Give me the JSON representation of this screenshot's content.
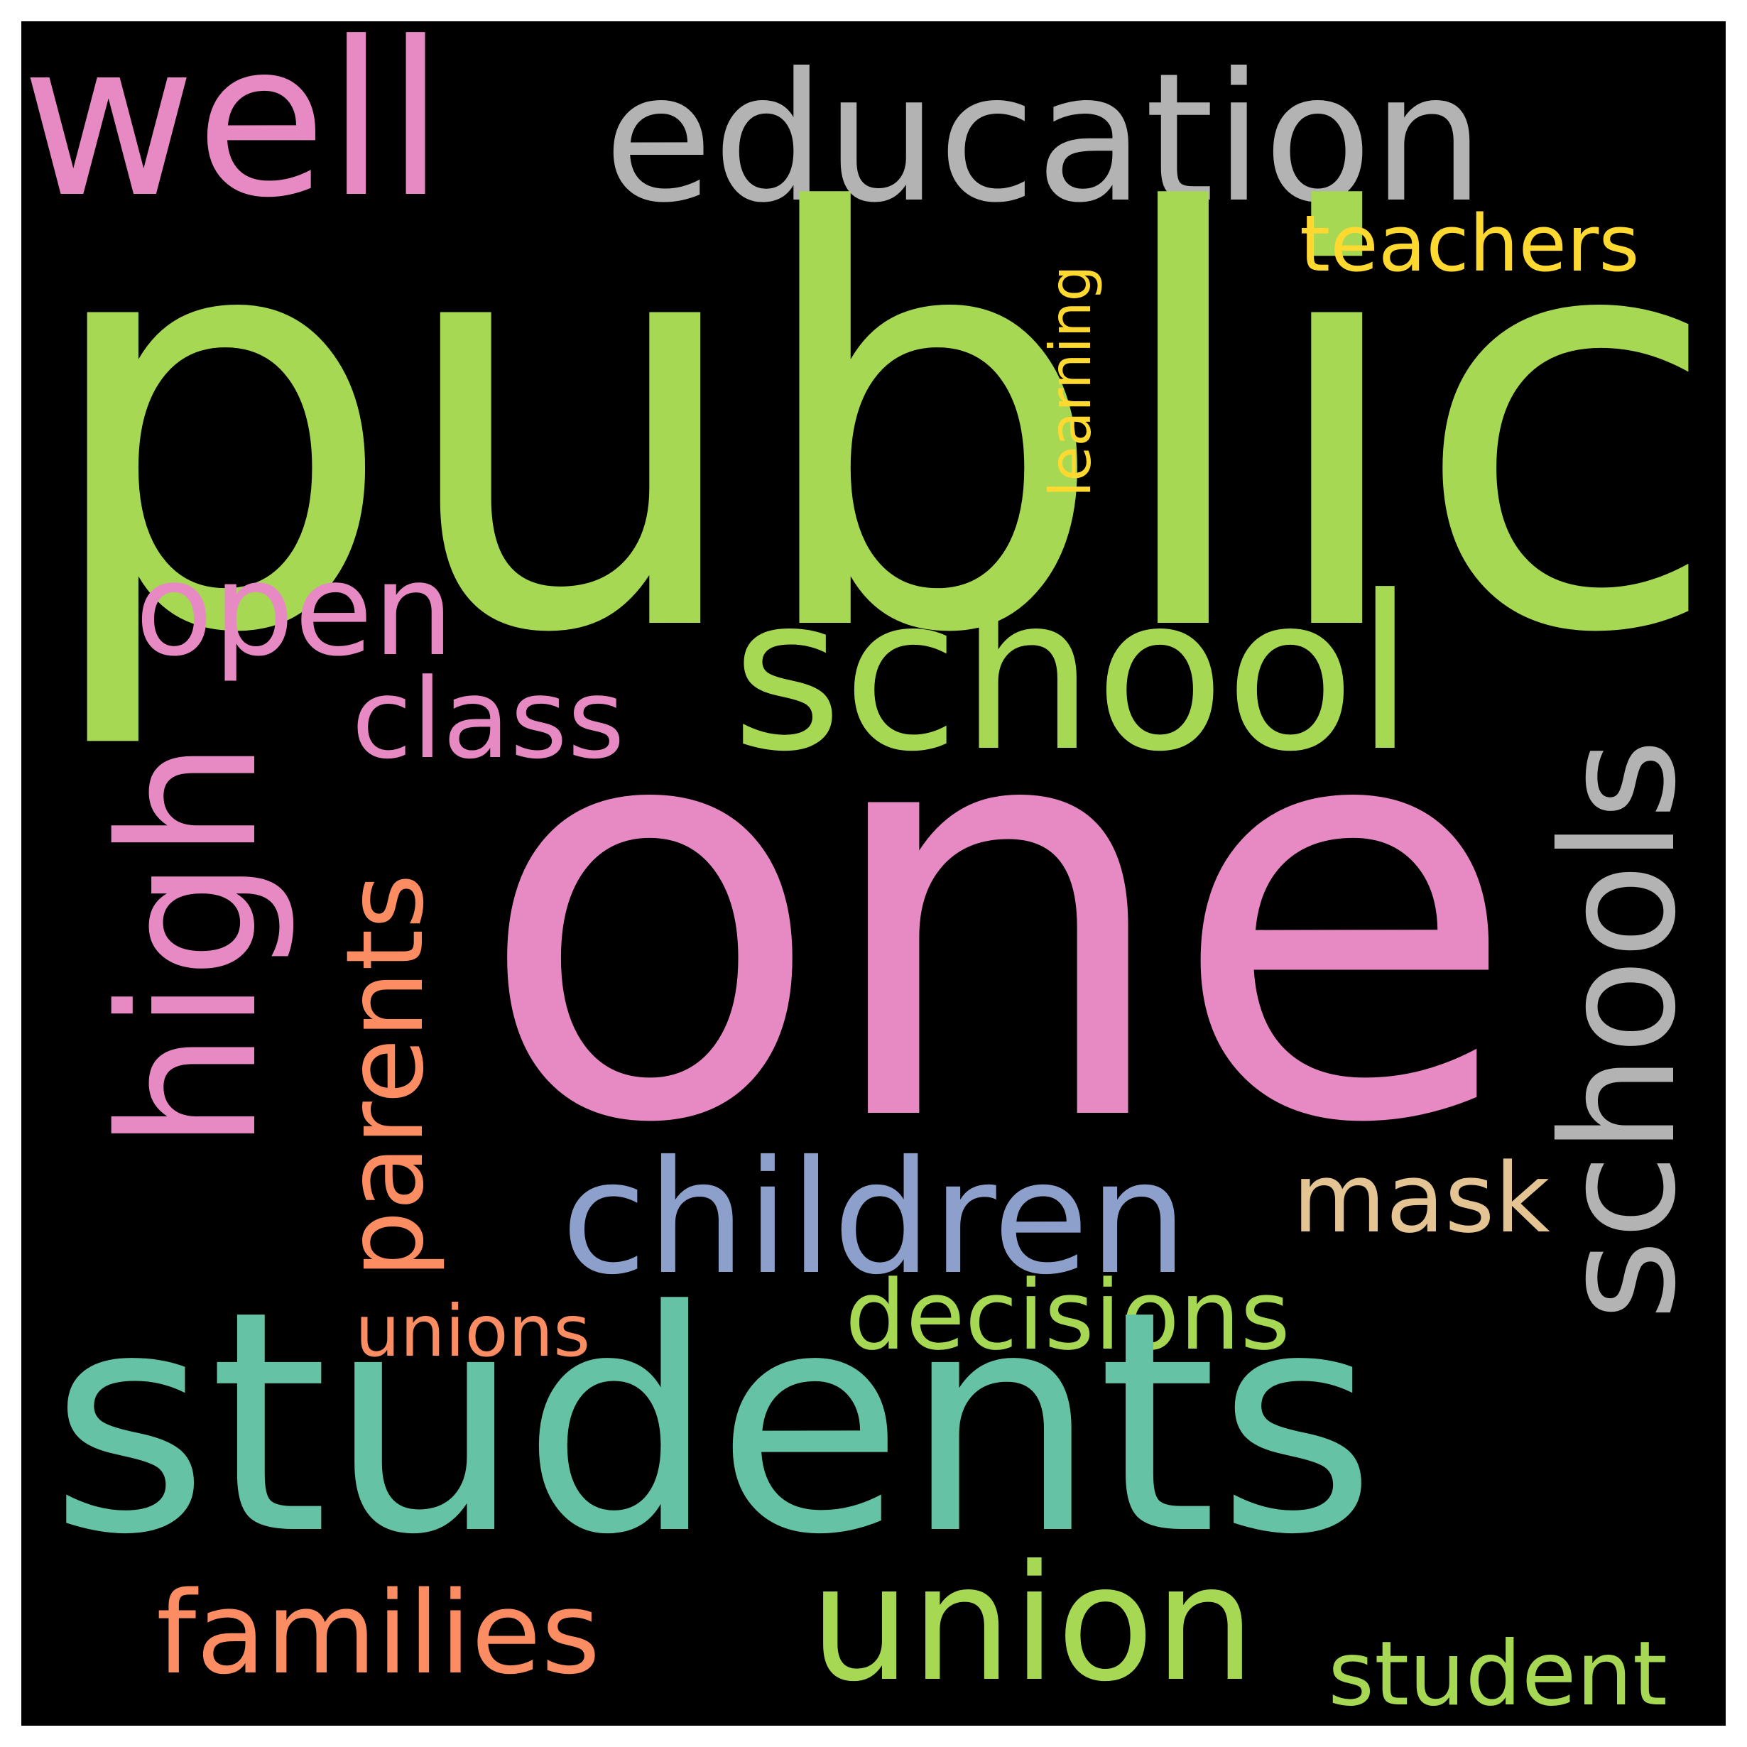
{
  "cloud": {
    "background": "#000000",
    "words": {
      "public": {
        "text": "public",
        "color": "#a6d854"
      },
      "one": {
        "text": "one",
        "color": "#e78ac3"
      },
      "students": {
        "text": "students",
        "color": "#66c2a5"
      },
      "school": {
        "text": "school",
        "color": "#a6d854"
      },
      "schools": {
        "text": "schools",
        "color": "#b3b3b3"
      },
      "well": {
        "text": "well",
        "color": "#e78ac3"
      },
      "education": {
        "text": "education",
        "color": "#b3b3b3"
      },
      "high": {
        "text": "high",
        "color": "#e78ac3"
      },
      "children": {
        "text": "children",
        "color": "#8da0cb"
      },
      "union": {
        "text": "union",
        "color": "#a6d854"
      },
      "families": {
        "text": "families",
        "color": "#fc8d62"
      },
      "parents": {
        "text": "parents",
        "color": "#fc8d62"
      },
      "open": {
        "text": "open",
        "color": "#e78ac3"
      },
      "class": {
        "text": "class",
        "color": "#e78ac3"
      },
      "decisions": {
        "text": "decisions",
        "color": "#a6d854"
      },
      "mask": {
        "text": "mask",
        "color": "#e5c494"
      },
      "student": {
        "text": "student",
        "color": "#a6d854"
      },
      "unions": {
        "text": "unions",
        "color": "#fc8d62"
      },
      "teachers": {
        "text": "teachers",
        "color": "#ffd92f"
      },
      "learning": {
        "text": "learning",
        "color": "#ffd92f"
      }
    }
  }
}
